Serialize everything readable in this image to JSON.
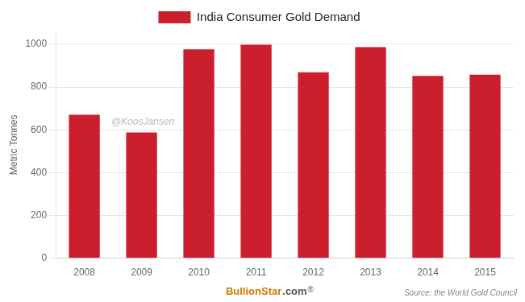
{
  "chart_data": {
    "type": "bar",
    "categories": [
      "2008",
      "2009",
      "2010",
      "2011",
      "2012",
      "2013",
      "2014",
      "2015"
    ],
    "series": [
      {
        "name": "India Consumer Gold Demand",
        "color": "#cc1f2e",
        "values": [
          670,
          588,
          976,
          998,
          869,
          987,
          852,
          858
        ]
      }
    ],
    "y_label": "Metric Tonnes",
    "ylim": [
      0,
      1060
    ],
    "yticks": [
      0,
      200,
      400,
      600,
      800,
      1000
    ],
    "grid": true,
    "legend": "top",
    "annotations": [
      "@KoosJansen",
      "BullionStar",
      ".com",
      "®",
      "Source: the World Gold Council"
    ]
  }
}
